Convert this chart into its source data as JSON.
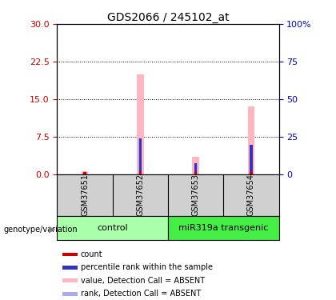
{
  "title": "GDS2066 / 245102_at",
  "samples": [
    "GSM37651",
    "GSM37652",
    "GSM37653",
    "GSM37654"
  ],
  "ylim_left": [
    0,
    30
  ],
  "ylim_right": [
    0,
    100
  ],
  "yticks_left": [
    0,
    7.5,
    15,
    22.5,
    30
  ],
  "yticks_right": [
    0,
    25,
    50,
    75,
    100
  ],
  "ytick_right_labels": [
    "0",
    "25",
    "50",
    "75",
    "100%"
  ],
  "pink_bars": [
    0.5,
    20.0,
    3.5,
    13.5
  ],
  "blue_bars": [
    0.4,
    7.2,
    2.1,
    5.8
  ],
  "red_bar_height": 0.35,
  "pink_color": "#FFB6C1",
  "red_color": "#CC0000",
  "blue_color": "#3333BB",
  "lightblue_color": "#AAAAEE",
  "left_yaxis_color": "#CC0000",
  "right_yaxis_color": "#0000CC",
  "bg_color": "#FFFFFF",
  "dotted_lines": [
    7.5,
    15,
    22.5
  ],
  "gray_label_bg": "#D0D0D0",
  "control_color": "#AAFFAA",
  "transgenic_color": "#44EE44",
  "legend_items": [
    {
      "label": "count",
      "color": "#CC0000"
    },
    {
      "label": "percentile rank within the sample",
      "color": "#3333BB"
    },
    {
      "label": "value, Detection Call = ABSENT",
      "color": "#FFB6C1"
    },
    {
      "label": "rank, Detection Call = ABSENT",
      "color": "#AAAAEE"
    }
  ]
}
